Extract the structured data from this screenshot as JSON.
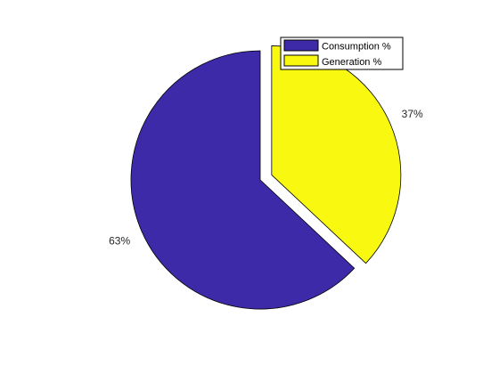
{
  "chart_data": {
    "type": "pie",
    "slices": [
      {
        "label": "Consumption %",
        "value": 63,
        "display": "63%",
        "color": "#3d2aa9",
        "exploded": false
      },
      {
        "label": "Generation %",
        "value": 37,
        "display": "37%",
        "color": "#f9f810",
        "exploded": true
      }
    ],
    "legend": {
      "placement": "top-right",
      "entries": [
        "Consumption %",
        "Generation %"
      ]
    },
    "start_angle": "top",
    "direction": "clockwise"
  }
}
